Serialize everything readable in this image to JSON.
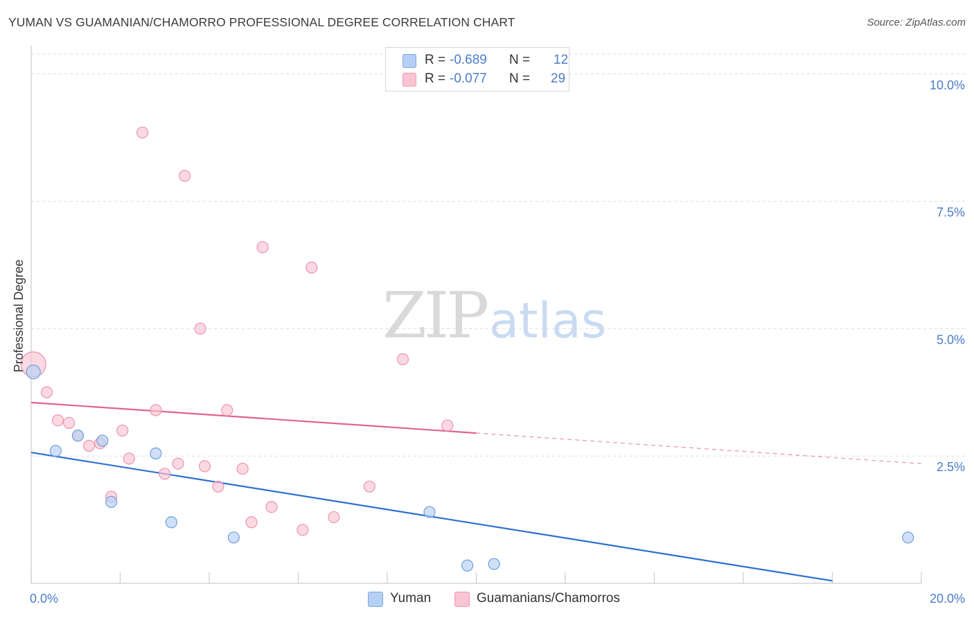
{
  "title": "YUMAN VS GUAMANIAN/CHAMORRO PROFESSIONAL DEGREE CORRELATION CHART",
  "source": "Source: ZipAtlas.com",
  "watermark": {
    "zip": "ZIP",
    "atlas": "atlas"
  },
  "legend": {
    "r_label": "R =",
    "n_label": "N =",
    "rows": [
      {
        "r": "-0.689",
        "n": "12",
        "fill": "#b6d0f5",
        "stroke": "#7aa6e0"
      },
      {
        "r": "-0.077",
        "n": "29",
        "fill": "#f9c4d4",
        "stroke": "#ec9ab3"
      }
    ]
  },
  "bottom_legend": [
    "Yuman",
    "Guamanians/Chamorros"
  ],
  "colors": {
    "yuman_fill": "#b6d0f5",
    "yuman_stroke": "#6f9fdc",
    "yuman_line": "#2d6fd0",
    "guam_fill": "#f9c4d4",
    "guam_stroke": "#eb93ae",
    "guam_line": "#e0648d",
    "grid": "#dddddd",
    "axis": "#cccccc",
    "tick_text": "#4a7cc8"
  },
  "chart_data": {
    "type": "scatter",
    "title": "YUMAN VS GUAMANIAN/CHAMORRO PROFESSIONAL DEGREE CORRELATION CHART",
    "xlabel": "",
    "ylabel": "Professional Degree",
    "xlim": [
      0,
      20
    ],
    "ylim": [
      0,
      10.5
    ],
    "x_tick_labels": {
      "min": "0.0%",
      "max": "20.0%"
    },
    "y_ticks": [
      {
        "value": 2.5,
        "label": "2.5%"
      },
      {
        "value": 5.0,
        "label": "5.0%"
      },
      {
        "value": 7.5,
        "label": "7.5%"
      },
      {
        "value": 10.0,
        "label": "10.0%"
      }
    ],
    "series": [
      {
        "name": "Yuman",
        "r": -0.689,
        "n": 12,
        "points": [
          {
            "x": 0.05,
            "y": 4.15,
            "size": 10
          },
          {
            "x": 0.55,
            "y": 2.6,
            "size": 8
          },
          {
            "x": 1.05,
            "y": 2.9,
            "size": 8
          },
          {
            "x": 1.6,
            "y": 2.8,
            "size": 8
          },
          {
            "x": 1.8,
            "y": 1.6,
            "size": 8
          },
          {
            "x": 2.8,
            "y": 2.55,
            "size": 8
          },
          {
            "x": 3.15,
            "y": 1.2,
            "size": 8
          },
          {
            "x": 4.55,
            "y": 0.9,
            "size": 8
          },
          {
            "x": 8.95,
            "y": 1.4,
            "size": 8
          },
          {
            "x": 9.8,
            "y": 0.35,
            "size": 8
          },
          {
            "x": 10.4,
            "y": 0.38,
            "size": 8
          },
          {
            "x": 19.7,
            "y": 0.9,
            "size": 8
          }
        ],
        "trend": {
          "x0": 0,
          "y0": 2.57,
          "x1": 18.0,
          "y1": 0.05,
          "dashed_to": null
        }
      },
      {
        "name": "Guamanians/Chamorros",
        "r": -0.077,
        "n": 29,
        "points": [
          {
            "x": 0.05,
            "y": 4.3,
            "size": 18
          },
          {
            "x": 0.35,
            "y": 3.75,
            "size": 8
          },
          {
            "x": 0.6,
            "y": 3.2,
            "size": 8
          },
          {
            "x": 0.85,
            "y": 3.15,
            "size": 8
          },
          {
            "x": 1.05,
            "y": 2.9,
            "size": 8
          },
          {
            "x": 1.3,
            "y": 2.7,
            "size": 8
          },
          {
            "x": 1.55,
            "y": 2.75,
            "size": 8
          },
          {
            "x": 1.8,
            "y": 1.7,
            "size": 8
          },
          {
            "x": 2.05,
            "y": 3.0,
            "size": 8
          },
          {
            "x": 2.2,
            "y": 2.45,
            "size": 8
          },
          {
            "x": 2.5,
            "y": 8.85,
            "size": 8
          },
          {
            "x": 2.8,
            "y": 3.4,
            "size": 8
          },
          {
            "x": 3.0,
            "y": 2.15,
            "size": 8
          },
          {
            "x": 3.3,
            "y": 2.35,
            "size": 8
          },
          {
            "x": 3.45,
            "y": 8.0,
            "size": 8
          },
          {
            "x": 3.8,
            "y": 5.0,
            "size": 8
          },
          {
            "x": 3.9,
            "y": 2.3,
            "size": 8
          },
          {
            "x": 4.2,
            "y": 1.9,
            "size": 8
          },
          {
            "x": 4.4,
            "y": 3.4,
            "size": 8
          },
          {
            "x": 4.75,
            "y": 2.25,
            "size": 8
          },
          {
            "x": 4.95,
            "y": 1.2,
            "size": 8
          },
          {
            "x": 5.2,
            "y": 6.6,
            "size": 8
          },
          {
            "x": 5.4,
            "y": 1.5,
            "size": 8
          },
          {
            "x": 6.1,
            "y": 1.05,
            "size": 8
          },
          {
            "x": 6.3,
            "y": 6.2,
            "size": 8
          },
          {
            "x": 6.8,
            "y": 1.3,
            "size": 8
          },
          {
            "x": 7.6,
            "y": 1.9,
            "size": 8
          },
          {
            "x": 8.35,
            "y": 4.4,
            "size": 8
          },
          {
            "x": 9.35,
            "y": 3.1,
            "size": 8
          }
        ],
        "trend": {
          "x0": 0,
          "y0": 3.55,
          "x1": 10.0,
          "y1": 2.95,
          "dashed_to": {
            "x": 20.0,
            "y": 2.35
          }
        }
      }
    ]
  }
}
